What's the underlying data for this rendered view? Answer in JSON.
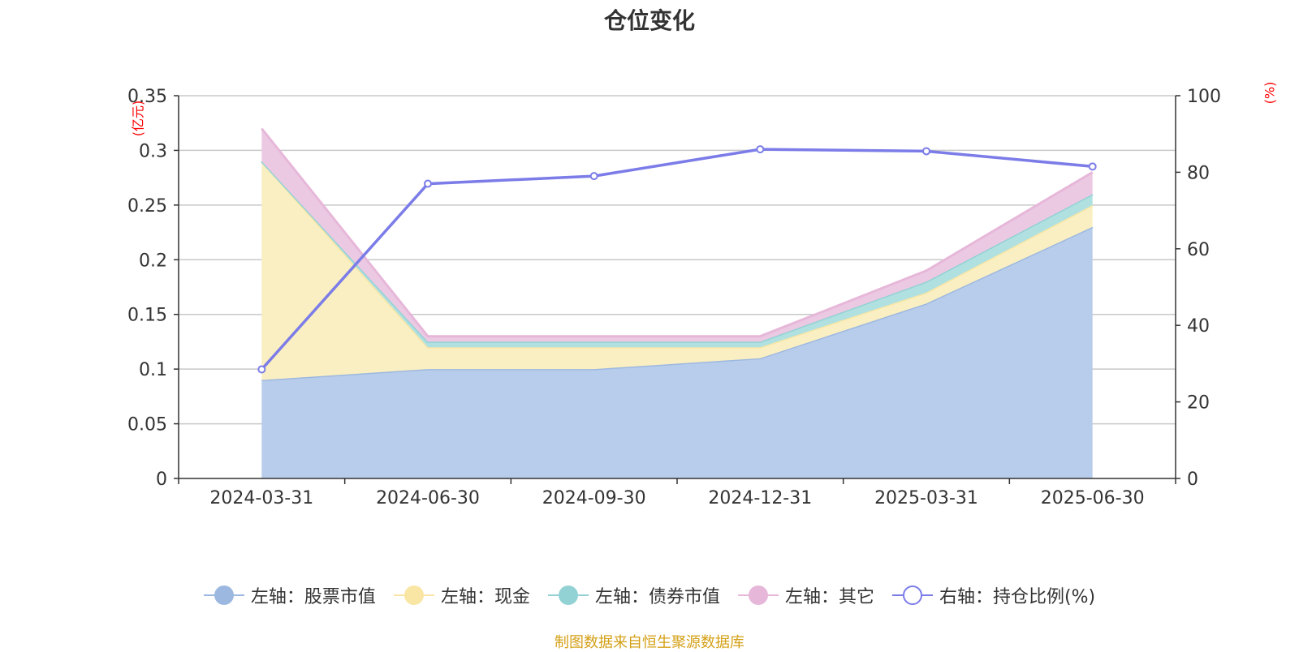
{
  "chart_data": {
    "type": "area",
    "title": "仓位变化",
    "ylabel_left": "(亿元)",
    "ylabel_right": "(%)",
    "categories": [
      "2024-03-31",
      "2024-06-30",
      "2024-09-30",
      "2024-12-31",
      "2025-03-31",
      "2025-06-30"
    ],
    "ylim_left": [
      0,
      0.35
    ],
    "yticks_left": [
      "0",
      "0.05",
      "0.1",
      "0.15",
      "0.2",
      "0.25",
      "0.3",
      "0.35"
    ],
    "ylim_right": [
      0,
      100
    ],
    "yticks_right": [
      "0",
      "20",
      "40",
      "60",
      "80",
      "100"
    ],
    "stacked": true,
    "series": [
      {
        "name": "左轴：股票市值",
        "axis": "left",
        "kind": "area",
        "color": "#9db8e0",
        "fill": "#b8cdeb",
        "values": [
          0.09,
          0.1,
          0.1,
          0.11,
          0.16,
          0.23
        ]
      },
      {
        "name": "左轴：现金",
        "axis": "left",
        "kind": "area",
        "color": "#f9e6a5",
        "fill": "#faefc2",
        "values": [
          0.2,
          0.02,
          0.02,
          0.01,
          0.01,
          0.02
        ]
      },
      {
        "name": "左轴：债券市值",
        "axis": "left",
        "kind": "area",
        "color": "#93d2d4",
        "fill": "#b1e0e1",
        "values": [
          0.0,
          0.005,
          0.005,
          0.005,
          0.01,
          0.01
        ]
      },
      {
        "name": "左轴：其它",
        "axis": "left",
        "kind": "area",
        "color": "#e6b7d9",
        "fill": "#ecc9e3",
        "values": [
          0.03,
          0.005,
          0.005,
          0.005,
          0.01,
          0.02
        ]
      },
      {
        "name": "右轴：持仓比例(%)",
        "axis": "right",
        "kind": "line",
        "color": "#7b7ce8",
        "values": [
          28.5,
          77,
          79,
          86,
          85.5,
          81.5
        ]
      }
    ],
    "grid": true,
    "legend_position": "bottom"
  },
  "source_note": "制图数据来自恒生聚源数据库"
}
